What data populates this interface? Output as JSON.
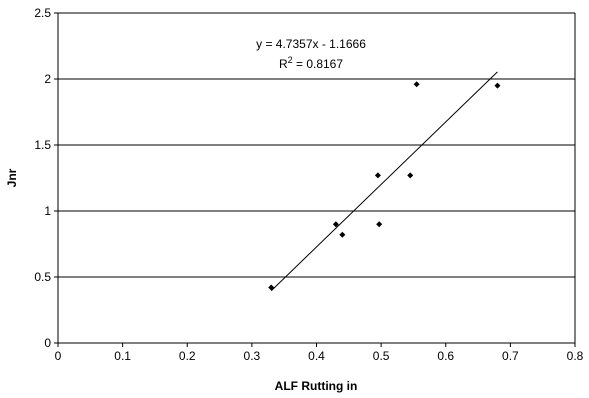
{
  "chart_data": {
    "type": "scatter",
    "xlabel": "ALF Rutting in",
    "ylabel": "Jnr",
    "xlim": [
      0,
      0.8
    ],
    "ylim": [
      0,
      2.5
    ],
    "x_ticks": [
      0,
      0.1,
      0.2,
      0.3,
      0.4,
      0.5,
      0.6,
      0.7,
      0.8
    ],
    "y_ticks": [
      0,
      0.5,
      1,
      1.5,
      2,
      2.5
    ],
    "x_tick_labels": [
      "0",
      "0.1",
      "0.2",
      "0.3",
      "0.4",
      "0.5",
      "0.6",
      "0.7",
      "0.8"
    ],
    "y_tick_labels": [
      "0",
      "0.5",
      "1",
      "1.5",
      "2",
      "2.5"
    ],
    "grid": "horizontal-major",
    "legend": "none",
    "series": [
      {
        "x": [
          0.33,
          0.43,
          0.44,
          0.495,
          0.497,
          0.545,
          0.555,
          0.68
        ],
        "y": [
          0.42,
          0.9,
          0.82,
          1.27,
          0.9,
          1.27,
          1.96,
          1.95
        ]
      }
    ],
    "trendline": {
      "slope": 4.7357,
      "intercept": -1.1666,
      "x_range": [
        0.33,
        0.68
      ],
      "equation_text": "y = 4.7357x - 1.1666",
      "r2_prefix": "R",
      "r2_sup": "2",
      "r2_suffix": " = 0.8167"
    },
    "colors": {
      "points": "#000000",
      "line": "#000000",
      "grid": "#000000"
    }
  }
}
